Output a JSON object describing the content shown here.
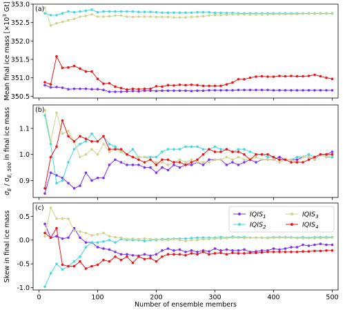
{
  "figure": {
    "xlabel": "Number of ensemble members",
    "x_ticks": [
      0,
      100,
      200,
      300,
      400,
      500
    ],
    "colors": {
      "IQIS1": "#7b2ff7",
      "IQIS2": "#3fd9e0",
      "IQIS3": "#cfd38a",
      "IQIS4": "#ee1111"
    }
  },
  "chart_data": [
    {
      "type": "line",
      "panel_label": "(a)",
      "ylabel_parts": [
        "Mean final ice mass [×10",
        "3",
        " Gt]"
      ],
      "ylim": [
        350.45,
        353.0
      ],
      "y_ticks": [
        "350.5",
        "351.0",
        "351.5",
        "352.0",
        "352.5",
        "353.0"
      ],
      "xlim": [
        -10,
        510
      ],
      "x": [
        10,
        20,
        30,
        40,
        50,
        60,
        70,
        80,
        90,
        100,
        110,
        120,
        130,
        140,
        150,
        160,
        170,
        180,
        190,
        200,
        210,
        220,
        230,
        240,
        250,
        260,
        270,
        280,
        290,
        300,
        310,
        320,
        330,
        340,
        350,
        360,
        370,
        380,
        390,
        400,
        410,
        420,
        430,
        440,
        450,
        460,
        470,
        480,
        490,
        500
      ],
      "series": [
        {
          "key": "IQIS1",
          "values": [
            350.8,
            350.74,
            350.75,
            350.73,
            350.69,
            350.7,
            350.7,
            350.7,
            350.69,
            350.69,
            350.67,
            350.62,
            350.62,
            350.62,
            350.63,
            350.64,
            350.63,
            350.65,
            350.65,
            350.64,
            350.65,
            350.65,
            350.65,
            350.65,
            350.65,
            350.64,
            350.65,
            350.65,
            350.66,
            350.66,
            350.66,
            350.66,
            350.66,
            350.67,
            350.67,
            350.67,
            350.67,
            350.67,
            350.67,
            350.66,
            350.66,
            350.66,
            350.66,
            350.66,
            350.66,
            350.66,
            350.66,
            350.66,
            350.66,
            350.66
          ]
        },
        {
          "key": "IQIS2",
          "values": [
            352.75,
            352.7,
            352.7,
            352.75,
            352.8,
            352.78,
            352.8,
            352.82,
            352.85,
            352.78,
            352.8,
            352.8,
            352.8,
            352.8,
            352.8,
            352.8,
            352.79,
            352.79,
            352.79,
            352.78,
            352.77,
            352.77,
            352.77,
            352.77,
            352.77,
            352.77,
            352.78,
            352.78,
            352.78,
            352.76,
            352.76,
            352.76,
            352.76,
            352.75,
            352.75,
            352.75,
            352.75,
            352.75,
            352.75,
            352.75,
            352.75,
            352.75,
            352.75,
            352.75,
            352.75,
            352.75,
            352.75,
            352.75,
            352.75,
            352.75
          ]
        },
        {
          "key": "IQIS3",
          "values": [
            352.9,
            352.42,
            352.48,
            352.52,
            352.56,
            352.6,
            352.66,
            352.68,
            352.72,
            352.66,
            352.66,
            352.67,
            352.69,
            352.69,
            352.66,
            352.65,
            352.66,
            352.66,
            352.66,
            352.65,
            352.65,
            352.65,
            352.64,
            352.64,
            352.64,
            352.65,
            352.66,
            352.67,
            352.69,
            352.7,
            352.7,
            352.71,
            352.72,
            352.72,
            352.72,
            352.72,
            352.72,
            352.72,
            352.72,
            352.73,
            352.73,
            352.73,
            352.73,
            352.73,
            352.74,
            352.74,
            352.74,
            352.74,
            352.74,
            352.74
          ]
        },
        {
          "key": "IQIS4",
          "values": [
            350.88,
            350.82,
            351.58,
            351.27,
            351.28,
            351.32,
            351.25,
            351.17,
            351.17,
            350.97,
            350.84,
            350.85,
            350.76,
            350.72,
            350.68,
            350.7,
            350.69,
            350.7,
            350.7,
            350.77,
            350.76,
            350.8,
            350.79,
            350.81,
            350.8,
            350.81,
            350.8,
            350.78,
            350.78,
            350.78,
            350.78,
            350.82,
            350.87,
            350.96,
            350.96,
            351.0,
            351.03,
            351.04,
            351.03,
            351.03,
            351.05,
            351.04,
            351.05,
            351.04,
            351.04,
            351.05,
            351.08,
            351.04,
            351.0,
            350.97
          ]
        }
      ]
    },
    {
      "type": "line",
      "panel_label": "(b)",
      "ylabel_parts": [
        "σ",
        "E",
        " / σ",
        "E, 500",
        " in final ice mass"
      ],
      "ylim": [
        0.835,
        1.19
      ],
      "y_ticks": [
        "0.9",
        "1.0",
        "1.1"
      ],
      "xlim": [
        -10,
        510
      ],
      "x": [
        10,
        20,
        30,
        40,
        50,
        60,
        70,
        80,
        90,
        100,
        110,
        120,
        130,
        140,
        150,
        160,
        170,
        180,
        190,
        200,
        210,
        220,
        230,
        240,
        250,
        260,
        270,
        280,
        290,
        300,
        310,
        320,
        330,
        340,
        350,
        360,
        370,
        380,
        390,
        400,
        410,
        420,
        430,
        440,
        450,
        460,
        470,
        480,
        490,
        500
      ],
      "series": [
        {
          "key": "IQIS1",
          "values": [
            0.85,
            0.93,
            0.92,
            0.91,
            0.89,
            0.87,
            0.88,
            0.93,
            0.9,
            0.91,
            0.91,
            0.96,
            0.98,
            0.97,
            0.96,
            0.96,
            0.96,
            0.95,
            0.95,
            0.93,
            0.95,
            0.94,
            0.96,
            0.95,
            0.96,
            0.96,
            0.97,
            0.96,
            0.98,
            0.98,
            0.98,
            0.96,
            0.97,
            0.96,
            0.97,
            0.98,
            0.97,
            0.98,
            0.98,
            0.98,
            0.99,
            0.98,
            0.98,
            0.98,
            0.99,
            0.99,
            0.98,
            1.0,
            1.0,
            1.01
          ]
        },
        {
          "key": "IQIS2",
          "values": [
            1.15,
            1.04,
            0.89,
            0.9,
            0.97,
            1.02,
            1.04,
            1.05,
            1.08,
            1.05,
            1.07,
            1.04,
            1.03,
            1.01,
            1.0,
            1.02,
            0.99,
            0.99,
            0.99,
            0.99,
            1.01,
            1.02,
            1.02,
            1.02,
            1.03,
            1.03,
            1.03,
            1.02,
            1.02,
            1.03,
            1.02,
            1.02,
            1.01,
            1.02,
            1.02,
            1.01,
            1.0,
            1.0,
            0.99,
            0.99,
            0.98,
            0.98,
            0.98,
            0.99,
            0.99,
            1.0,
            0.99,
            1.0,
            0.99,
            0.99
          ]
        },
        {
          "key": "IQIS3",
          "values": [
            1.17,
            1.05,
            1.16,
            1.08,
            1.09,
            1.05,
            0.99,
            1.0,
            1.02,
            1.0,
            1.04,
            1.01,
            1.02,
            1.01,
            1.0,
            0.99,
            0.99,
            0.99,
            0.98,
            0.97,
            0.97,
            0.96,
            0.97,
            0.98,
            0.97,
            0.98,
            0.97,
            0.97,
            0.97,
            0.98,
            0.98,
            0.99,
            0.98,
            0.99,
            0.98,
            0.98,
            0.99,
            0.98,
            0.98,
            0.98,
            0.97,
            0.98,
            0.98,
            0.97,
            0.99,
            0.99,
            0.98,
            1.0,
            0.99,
            1.0
          ]
        },
        {
          "key": "IQIS4",
          "values": [
            0.87,
            0.99,
            1.03,
            1.13,
            1.07,
            1.05,
            1.07,
            1.06,
            1.05,
            1.05,
            1.07,
            1.02,
            1.02,
            1.02,
            1.0,
            0.99,
            0.98,
            0.97,
            0.98,
            0.96,
            0.98,
            0.98,
            0.97,
            0.97,
            0.96,
            0.97,
            0.98,
            1.0,
            1.02,
            1.01,
            1.01,
            1.02,
            1.01,
            1.01,
            1.0,
            0.98,
            1.0,
            1.0,
            1.0,
            0.99,
            0.98,
            0.98,
            0.97,
            0.97,
            0.97,
            0.98,
            0.99,
            1.0,
            1.0,
            1.0
          ]
        }
      ]
    },
    {
      "type": "line",
      "panel_label": "(c)",
      "ylabel": "Skew in final ice mass",
      "ylim": [
        -1.05,
        0.78
      ],
      "y_ticks": [
        "-1.0",
        "-0.5",
        "0.0",
        "0.5"
      ],
      "xlim": [
        -10,
        510
      ],
      "legend": {
        "placement": "top-right",
        "entries": [
          {
            "key": "IQIS1",
            "base": "IQIS",
            "sub": "1"
          },
          {
            "key": "IQIS2",
            "base": "IQIS",
            "sub": "2"
          },
          {
            "key": "IQIS3",
            "base": "IQIS",
            "sub": "3"
          },
          {
            "key": "IQIS4",
            "base": "IQIS",
            "sub": "4"
          }
        ]
      },
      "x": [
        10,
        20,
        30,
        40,
        50,
        60,
        70,
        80,
        90,
        100,
        110,
        120,
        130,
        140,
        150,
        160,
        170,
        180,
        190,
        200,
        210,
        220,
        230,
        240,
        250,
        260,
        270,
        280,
        290,
        300,
        310,
        320,
        330,
        340,
        350,
        360,
        370,
        380,
        390,
        400,
        410,
        420,
        430,
        440,
        450,
        460,
        470,
        480,
        490,
        500
      ],
      "series": [
        {
          "key": "IQIS1",
          "values": [
            0.34,
            0.05,
            0.08,
            0.03,
            0.05,
            0.25,
            0.05,
            -0.05,
            -0.05,
            -0.15,
            -0.18,
            -0.2,
            -0.25,
            -0.3,
            -0.3,
            -0.32,
            -0.33,
            -0.3,
            -0.33,
            -0.3,
            -0.22,
            -0.18,
            -0.22,
            -0.2,
            -0.25,
            -0.22,
            -0.25,
            -0.22,
            -0.24,
            -0.18,
            -0.22,
            -0.2,
            -0.22,
            -0.22,
            -0.2,
            -0.25,
            -0.24,
            -0.22,
            -0.22,
            -0.18,
            -0.2,
            -0.18,
            -0.15,
            -0.15,
            -0.1,
            -0.12,
            -0.1,
            -0.08,
            -0.1,
            -0.1
          ]
        },
        {
          "key": "IQIS2",
          "values": [
            -0.98,
            -0.7,
            -0.5,
            -0.62,
            -0.55,
            -0.45,
            -0.35,
            -0.15,
            -0.05,
            -0.05,
            -0.03,
            0.0,
            -0.05,
            0.02,
            0.0,
            0.0,
            0.0,
            -0.02,
            0.0,
            0.0,
            0.02,
            0.02,
            0.03,
            0.03,
            0.03,
            0.04,
            0.05,
            0.05,
            0.05,
            0.05,
            0.06,
            0.05,
            0.07,
            0.06,
            0.06,
            0.05,
            0.05,
            0.05,
            0.05,
            0.06,
            0.06,
            0.06,
            0.06,
            0.05,
            0.06,
            0.05,
            0.06,
            0.06,
            0.06,
            0.06
          ]
        },
        {
          "key": "IQIS3",
          "values": [
            0.08,
            0.68,
            0.45,
            0.45,
            0.45,
            0.2,
            0.18,
            0.15,
            0.1,
            0.12,
            0.15,
            0.08,
            0.06,
            0.05,
            0.02,
            0.03,
            0.02,
            0.03,
            0.02,
            0.02,
            0.0,
            0.0,
            0.02,
            0.0,
            -0.02,
            0.0,
            0.0,
            0.02,
            0.02,
            0.03,
            0.03,
            0.04,
            0.05,
            0.05,
            0.04,
            0.05,
            0.05,
            0.05,
            0.04,
            0.05,
            0.05,
            0.05,
            0.05,
            0.04,
            0.04,
            0.04,
            0.04,
            0.04,
            0.04,
            0.05
          ]
        },
        {
          "key": "IQIS4",
          "values": [
            0.15,
            0.05,
            0.25,
            -0.52,
            -0.55,
            -0.55,
            -0.45,
            -0.6,
            -0.55,
            -0.52,
            -0.42,
            -0.45,
            -0.35,
            -0.42,
            -0.35,
            -0.48,
            -0.35,
            -0.4,
            -0.38,
            -0.45,
            -0.35,
            -0.3,
            -0.3,
            -0.3,
            -0.32,
            -0.28,
            -0.3,
            -0.25,
            -0.3,
            -0.28,
            -0.27,
            -0.3,
            -0.27,
            -0.28,
            -0.28,
            -0.27,
            -0.27,
            -0.26,
            -0.25,
            -0.25,
            -0.25,
            -0.25,
            -0.25,
            -0.25,
            -0.24,
            -0.24,
            -0.23,
            -0.23,
            -0.22,
            -0.22
          ]
        }
      ]
    }
  ]
}
